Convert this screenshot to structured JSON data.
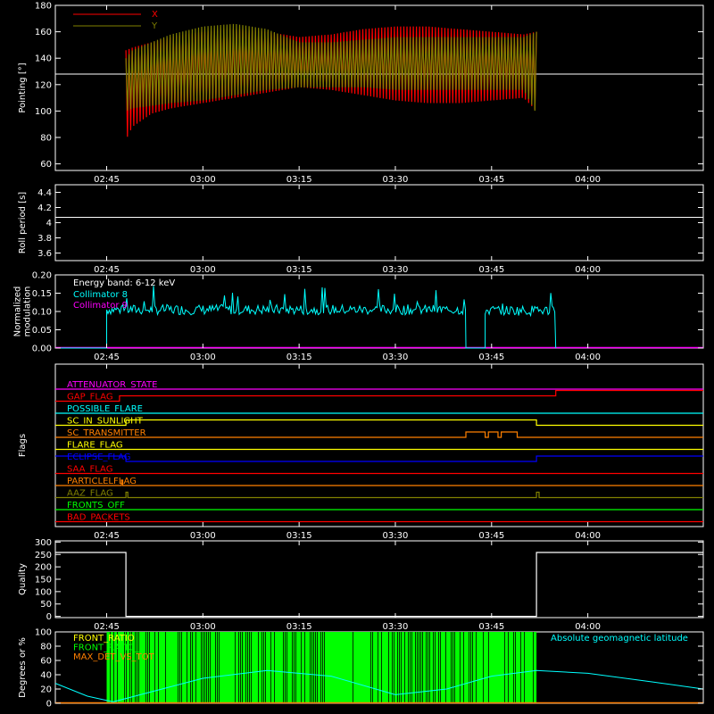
{
  "chart_data": [
    {
      "id": "pointing",
      "type": "line",
      "ylabel": "Pointing [°]",
      "ylim": [
        55,
        180
      ],
      "yticks": [
        60,
        80,
        100,
        120,
        140,
        160,
        180
      ],
      "xlim_minutes": [
        157,
        258
      ],
      "xticks": [
        "02:45",
        "03:00",
        "03:15",
        "03:30",
        "03:45",
        "04:00"
      ],
      "legend": [
        {
          "label": "X",
          "color": "#ff0000"
        },
        {
          "label": "Y",
          "color": "#808000"
        }
      ],
      "reference_line": {
        "y": 128,
        "color": "#ffffff"
      },
      "series": [
        {
          "name": "X",
          "color": "#ff0000",
          "time": [
            "02:48",
            "02:49",
            "02:52",
            "02:55",
            "03:00",
            "03:05",
            "03:10",
            "03:15",
            "03:20",
            "03:25",
            "03:30",
            "03:35",
            "03:40",
            "03:45",
            "03:50",
            "03:52"
          ],
          "upper": [
            146,
            148,
            152,
            156,
            160,
            162,
            160,
            156,
            158,
            162,
            164,
            164,
            162,
            160,
            158,
            160
          ],
          "lower": [
            78,
            88,
            98,
            102,
            106,
            110,
            114,
            118,
            116,
            112,
            108,
            106,
            106,
            108,
            110,
            100
          ]
        },
        {
          "name": "Y",
          "color": "#808000",
          "time": [
            "02:48",
            "02:49",
            "02:52",
            "02:55",
            "03:00",
            "03:05",
            "03:10",
            "03:15",
            "03:20",
            "03:25",
            "03:30",
            "03:35",
            "03:40",
            "03:45",
            "03:50",
            "03:52"
          ],
          "upper": [
            140,
            146,
            152,
            158,
            164,
            166,
            162,
            152,
            152,
            154,
            156,
            156,
            156,
            156,
            156,
            160
          ],
          "lower": [
            100,
            102,
            104,
            106,
            108,
            112,
            116,
            118,
            118,
            118,
            116,
            116,
            116,
            116,
            116,
            98
          ]
        }
      ]
    },
    {
      "id": "roll",
      "type": "line",
      "ylabel": "Roll period [s]",
      "ylim": [
        3.5,
        4.5
      ],
      "yticks": [
        3.6,
        3.8,
        4.0,
        4.2,
        4.4
      ],
      "xlim_minutes": [
        157,
        258
      ],
      "xticks": [
        "02:45",
        "03:00",
        "03:15",
        "03:30",
        "03:45",
        "04:00"
      ],
      "series": [
        {
          "color": "#ffffff",
          "time": [
            "02:37",
            "04:18"
          ],
          "values": [
            4.07,
            4.07
          ]
        }
      ]
    },
    {
      "id": "modulation",
      "type": "line",
      "ylabel": "Normalized modulation",
      "ylim": [
        0,
        0.2
      ],
      "yticks": [
        "0.00",
        "0.05",
        "0.10",
        "0.15",
        "0.20"
      ],
      "xlim_minutes": [
        157,
        258
      ],
      "xticks": [
        "02:45",
        "03:00",
        "03:15",
        "03:30",
        "03:45",
        "04:00"
      ],
      "annotation": "Energy band: 6-12 keV",
      "series": [
        {
          "name": "Collimator 8",
          "color": "#00ffff",
          "segments": [
            {
              "start": "02:45",
              "end": "03:41",
              "mean": 0.105,
              "spread": 0.028
            },
            {
              "start": "03:44",
              "end": "03:55",
              "mean": 0.103,
              "spread": 0.028
            }
          ]
        },
        {
          "name": "Collimator 9",
          "color": "#ff00ff",
          "time": [
            "02:37",
            "04:18"
          ],
          "values": [
            0,
            0
          ]
        }
      ]
    },
    {
      "id": "flags",
      "type": "line",
      "ylabel": "Flags",
      "xlim_minutes": [
        157,
        258
      ],
      "xticks": [
        "02:45",
        "03:00",
        "03:15",
        "03:30",
        "03:45",
        "04:00"
      ],
      "series": [
        {
          "name": "ATTENUATOR_STATE",
          "color": "#ff00ff",
          "steps": []
        },
        {
          "name": "GAP_FLAG",
          "color": "#ff0000",
          "steps": [
            [
              "02:47",
              1
            ],
            [
              "03:55",
              2
            ]
          ]
        },
        {
          "name": "POSSIBLE_FLARE",
          "color": "#00ffff",
          "steps": []
        },
        {
          "name": "SC_IN_SUNLIGHT",
          "color": "#ffff00",
          "steps": [
            [
              "02:48",
              1
            ],
            [
              "03:52",
              0
            ]
          ]
        },
        {
          "name": "SC_TRANSMITTER",
          "color": "#ff8000",
          "steps": [
            [
              "03:41",
              1
            ],
            [
              "03:44",
              0
            ],
            [
              "03:44.5",
              1
            ],
            [
              "03:46",
              0
            ],
            [
              "03:46.5",
              1
            ],
            [
              "03:49",
              0
            ]
          ]
        },
        {
          "name": "FLARE_FLAG",
          "color": "#ffff00",
          "steps": []
        },
        {
          "name": "ECLIPSE_FLAG",
          "color": "#0000ff",
          "steps": [
            [
              "02:48",
              0
            ],
            [
              "03:52",
              1
            ]
          ],
          "initial": 1
        },
        {
          "name": "SAA_FLAG",
          "color": "#ff0000",
          "steps": []
        },
        {
          "name": "PARTICLELFLAG",
          "color": "#ff8000",
          "steps": [
            [
              "02:47.3",
              1
            ],
            [
              "02:47.5",
              0
            ]
          ]
        },
        {
          "name": "AAZ_FLAG",
          "color": "#808000",
          "steps": [
            [
              "02:48",
              1
            ],
            [
              "02:48.3",
              0
            ],
            [
              "03:52",
              1
            ],
            [
              "03:52.4",
              0
            ]
          ]
        },
        {
          "name": "FRONTS_OFF",
          "color": "#00ff00",
          "steps": []
        },
        {
          "name": "BAD_PACKETS",
          "color": "#ff0000",
          "steps": []
        }
      ]
    },
    {
      "id": "quality",
      "type": "line",
      "ylabel": "Quality",
      "ylim": [
        -5,
        305
      ],
      "yticks": [
        0,
        50,
        100,
        150,
        200,
        250,
        300
      ],
      "xlim_minutes": [
        157,
        258
      ],
      "xticks": [
        "02:45",
        "03:00",
        "03:15",
        "03:30",
        "03:45",
        "04:00"
      ],
      "series": [
        {
          "color": "#ffffff",
          "time": [
            "02:37",
            "02:48",
            "02:48",
            "03:52",
            "03:52",
            "04:18"
          ],
          "values": [
            258,
            258,
            0,
            0,
            258,
            258
          ]
        }
      ]
    },
    {
      "id": "geomag",
      "type": "line",
      "ylabel": "Degrees or %",
      "ylim": [
        0,
        100
      ],
      "yticks": [
        0,
        20,
        40,
        60,
        80,
        100
      ],
      "xlim_minutes": [
        157,
        258
      ],
      "legend": [
        {
          "label": "FRONT_RATIO",
          "color": "#ffff00"
        },
        {
          "label": "FRONT_RATIO_",
          "color": "#00ff00"
        },
        {
          "label": "MAX_DET_VS_TOT",
          "color": "#ff8000"
        },
        {
          "label": "Absolute geomagnetic latitude",
          "color": "#00ffff"
        }
      ],
      "series": [
        {
          "name": "Absolute geomagnetic latitude",
          "color": "#00ffff",
          "time": [
            "02:37",
            "02:42",
            "02:46",
            "03:00",
            "03:10",
            "03:20",
            "03:30",
            "03:38",
            "03:45",
            "03:52",
            "04:00",
            "04:10",
            "04:18"
          ],
          "values": [
            28,
            10,
            2,
            35,
            46,
            38,
            12,
            20,
            38,
            46,
            42,
            30,
            20
          ]
        },
        {
          "name": "FRONT_RATIO_",
          "color": "#00ff00",
          "band": {
            "start": "02:45",
            "end": "03:52",
            "top": 100
          }
        },
        {
          "name": "MAX_DET_VS_TOT",
          "color": "#ff8000",
          "time": [
            "02:37",
            "04:18"
          ],
          "values": [
            0,
            0
          ]
        }
      ]
    }
  ]
}
